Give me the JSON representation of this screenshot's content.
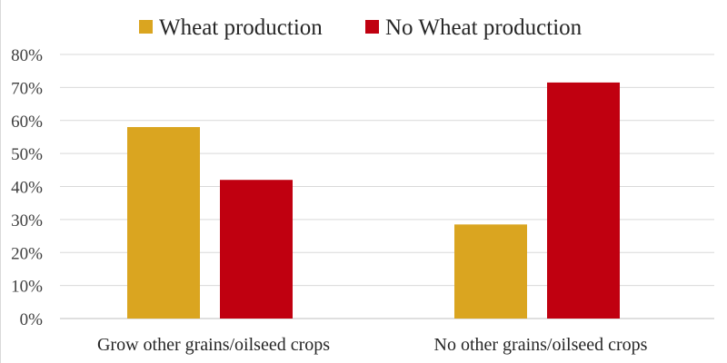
{
  "chart_data": {
    "type": "bar",
    "title": "",
    "xlabel": "",
    "ylabel": "",
    "categories": [
      "Grow other grains/oilseed crops",
      "No other grains/oilseed crops"
    ],
    "series": [
      {
        "name": "Wheat production",
        "color": "#DAA520",
        "values": [
          58,
          28.5
        ]
      },
      {
        "name": "No Wheat production",
        "color": "#C00010",
        "values": [
          42,
          71.5
        ]
      }
    ],
    "ylim": [
      0,
      80
    ],
    "yticks": [
      0,
      10,
      20,
      30,
      40,
      50,
      60,
      70,
      80
    ],
    "ytick_suffix": "%",
    "grid": true,
    "legend_position": "top-center"
  }
}
